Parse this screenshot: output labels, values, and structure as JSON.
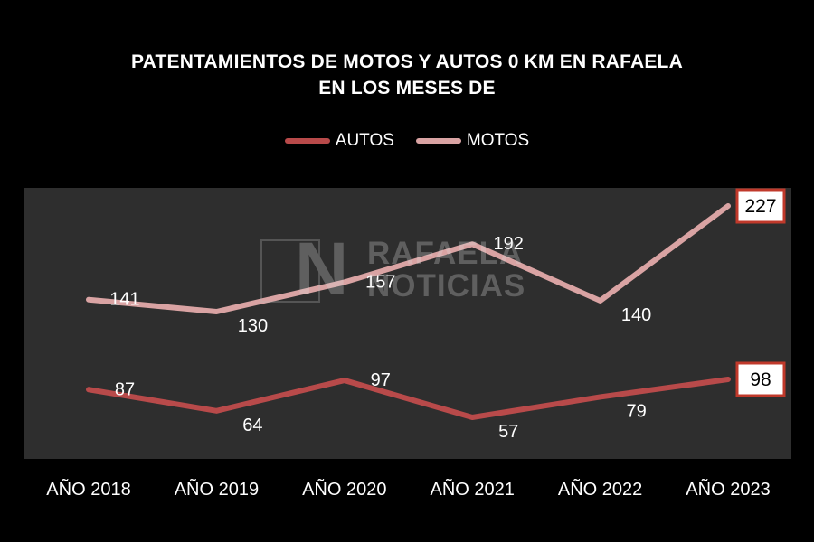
{
  "chart_data": {
    "type": "line",
    "title_line1": "PATENTAMIENTOS DE MOTOS Y AUTOS 0 KM EN RAFAELA",
    "title_line2": "EN LOS MESES DE",
    "categories": [
      "AÑO 2018",
      "AÑO 2019",
      "AÑO 2020",
      "AÑO 2021",
      "AÑO 2022",
      "AÑO 2023"
    ],
    "series": [
      {
        "name": "AUTOS",
        "color": "#b84a4a",
        "values": [
          87,
          64,
          97,
          57,
          79,
          98
        ]
      },
      {
        "name": "MOTOS",
        "color": "#d9a3a3",
        "values": [
          141,
          130,
          157,
          192,
          140,
          227
        ]
      }
    ],
    "highlighted_last_value": true,
    "legend_position": "top-center",
    "grid": false,
    "plot_background": "#2e2e2e"
  },
  "watermark": {
    "line1": "RAFAELA",
    "line2": "NOTICIAS"
  }
}
